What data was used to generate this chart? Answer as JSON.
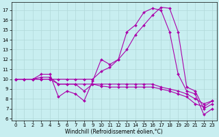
{
  "x": [
    0,
    1,
    2,
    3,
    4,
    5,
    6,
    7,
    8,
    9,
    10,
    11,
    12,
    13,
    14,
    15,
    16,
    17,
    18,
    19,
    20,
    21,
    22,
    23
  ],
  "line1": [
    10,
    10,
    10,
    10,
    10,
    9.5,
    9.5,
    9.5,
    9.5,
    9.5,
    9.5,
    9.5,
    9.5,
    9.5,
    9.5,
    9.5,
    9.5,
    9.2,
    9.0,
    8.8,
    8.5,
    8.0,
    7.5,
    7.8
  ],
  "line2": [
    10,
    10,
    10,
    10.2,
    10.2,
    9.5,
    9.5,
    9.5,
    8.8,
    9.5,
    9.3,
    9.2,
    9.2,
    9.2,
    9.2,
    9.2,
    9.2,
    9.0,
    8.8,
    8.5,
    8.2,
    7.5,
    7.2,
    7.8
  ],
  "line3": [
    10,
    10,
    10,
    10.5,
    10.5,
    8.2,
    8.8,
    8.5,
    7.8,
    9.8,
    12.0,
    11.5,
    12.0,
    14.8,
    15.5,
    16.8,
    17.2,
    17.0,
    14.8,
    10.5,
    8.8,
    8.5,
    6.4,
    7.0
  ],
  "line4": [
    10,
    10,
    10,
    10,
    10,
    10,
    10,
    10,
    10,
    10,
    10.8,
    11.2,
    12.0,
    13.0,
    14.5,
    15.5,
    16.5,
    17.3,
    17.2,
    14.8,
    9.2,
    8.8,
    7.0,
    7.5
  ],
  "background_color": "#c8eef0",
  "grid_color": "#b0d8d8",
  "line_color": "#aa00aa",
  "marker": "D",
  "marker_size": 2,
  "lw": 0.8,
  "xlabel": "Windchill (Refroidissement éolien,°C)",
  "xlim": [
    -0.5,
    23.5
  ],
  "ylim": [
    5.8,
    17.8
  ],
  "yticks": [
    6,
    7,
    8,
    9,
    10,
    11,
    12,
    13,
    14,
    15,
    16,
    17
  ],
  "xticks": [
    0,
    1,
    2,
    3,
    4,
    5,
    6,
    7,
    8,
    9,
    10,
    11,
    12,
    13,
    14,
    15,
    16,
    17,
    18,
    19,
    20,
    21,
    22,
    23
  ],
  "xlabel_fontsize": 5.5,
  "tick_fontsize": 5
}
